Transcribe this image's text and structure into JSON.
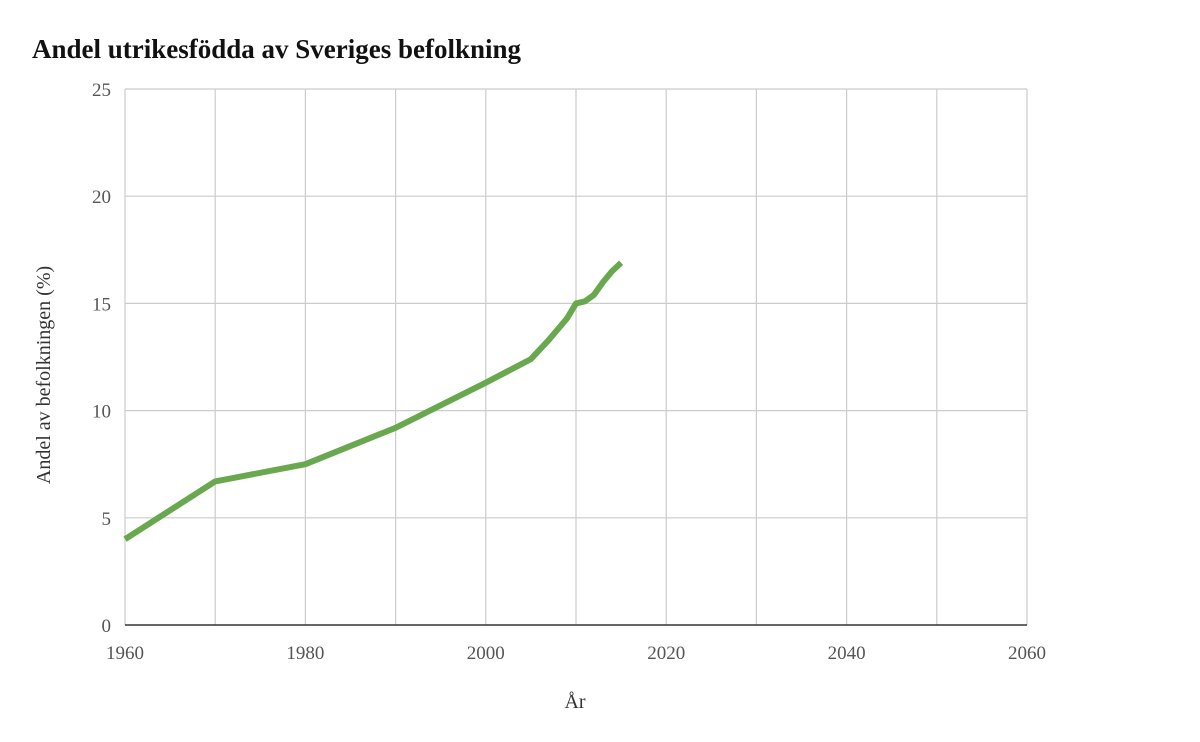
{
  "chart_data": {
    "type": "line",
    "title": "Andel utrikesfödda av Sveriges befolkning",
    "xlabel": "År",
    "ylabel": "Andel av befolkningen (%)",
    "xlim": [
      1960,
      2060
    ],
    "ylim": [
      0,
      25
    ],
    "x_ticks": [
      1960,
      1980,
      2000,
      2020,
      2040,
      2060
    ],
    "y_ticks": [
      0,
      5,
      10,
      15,
      20,
      25
    ],
    "x_grid_step": 10,
    "grid": true,
    "legend": "none",
    "series": [
      {
        "color": "#6aa84f",
        "x": [
          1960,
          1970,
          1980,
          1990,
          2000,
          2005,
          2007,
          2008,
          2009,
          2010,
          2011,
          2012,
          2013,
          2014,
          2015
        ],
        "y": [
          4.0,
          6.7,
          7.5,
          9.2,
          11.3,
          12.4,
          13.3,
          13.8,
          14.3,
          15.0,
          15.1,
          15.4,
          16.0,
          16.5,
          16.9
        ]
      }
    ]
  }
}
